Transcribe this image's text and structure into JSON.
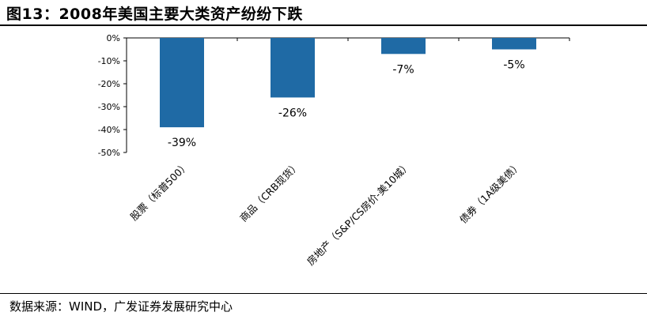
{
  "title": "图13：2008年美国主要大类资产纷纷下跌",
  "source": "数据来源：WIND，广发证券发展研究中心",
  "chart_data": {
    "type": "bar",
    "categories": [
      "股票（标普500）",
      "商品（CRB现货）",
      "房地产（S&P/CS房价-美10城）",
      "债券（1A级美债）"
    ],
    "values": [
      -39,
      -26,
      -7,
      -5
    ],
    "data_labels": [
      "-39%",
      "-26%",
      "-7%",
      "-5%"
    ],
    "ylim": [
      -50,
      0
    ],
    "yticks": [
      "0%",
      "-10%",
      "-20%",
      "-30%",
      "-40%",
      "-50%"
    ],
    "bar_color": "#1F6AA5",
    "grid": false,
    "legend": "none"
  }
}
